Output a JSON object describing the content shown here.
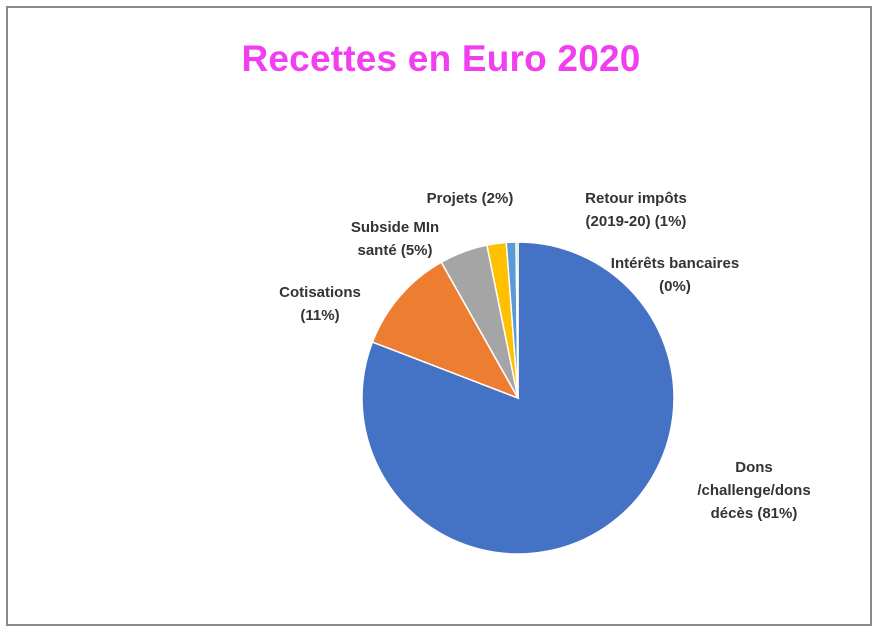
{
  "chart_data": {
    "type": "pie",
    "title": "Recettes en Euro 2020",
    "title_color": "#f03ef0",
    "slices": [
      {
        "label_lines": [
          "Dons",
          "/challenge/dons",
          "décès (81%)"
        ],
        "value": 81,
        "color": "#4472c4"
      },
      {
        "label_lines": [
          "Cotisations",
          "(11%)"
        ],
        "value": 11,
        "color": "#ed7d31"
      },
      {
        "label_lines": [
          "Subside MIn",
          "santé (5%)"
        ],
        "value": 5,
        "color": "#a5a5a5"
      },
      {
        "label_lines": [
          "Projets (2%)"
        ],
        "value": 2,
        "color": "#ffc000"
      },
      {
        "label_lines": [
          "Retour impôts",
          "(2019-20)  (1%)"
        ],
        "value": 1,
        "color": "#5b9bd5"
      },
      {
        "label_lines": [
          "Intérêts bancaires",
          "(0%)"
        ],
        "value": 0.2,
        "color": "#70ad47"
      }
    ]
  }
}
